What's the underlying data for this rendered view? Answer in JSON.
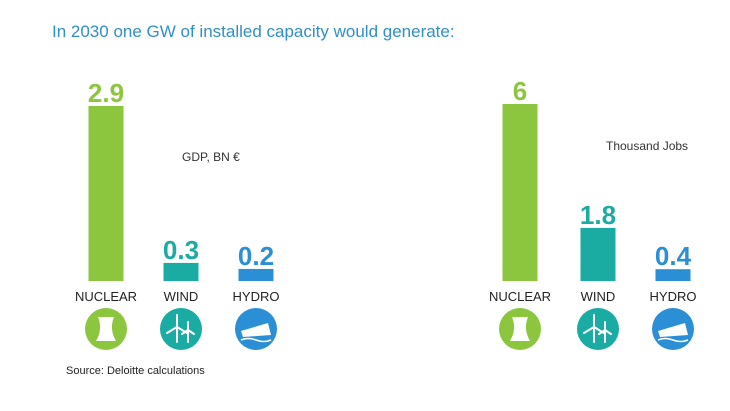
{
  "title": "In 2030 one GW of installed capacity would generate:",
  "source": "Source: Deloitte calculations",
  "colors": {
    "nuclear": "#8cc63f",
    "wind": "#1aaba3",
    "hydro": "#2b8fd6"
  },
  "icons": [
    "cooling-tower-icon",
    "wind-turbine-icon",
    "dam-icon"
  ],
  "chart_data": [
    {
      "type": "bar",
      "unit_label": "GDP, BN €",
      "categories": [
        "NUCLEAR",
        "WIND",
        "HYDRO"
      ],
      "values": [
        2.9,
        0.3,
        0.2
      ],
      "value_labels": [
        "2.9",
        "0.3",
        "0.2"
      ]
    },
    {
      "type": "bar",
      "unit_label": "Thousand Jobs",
      "categories": [
        "NUCLEAR",
        "WIND",
        "HYDRO"
      ],
      "values": [
        6,
        1.8,
        0.4
      ],
      "value_labels": [
        "6",
        "1.8",
        "0.4"
      ]
    }
  ]
}
